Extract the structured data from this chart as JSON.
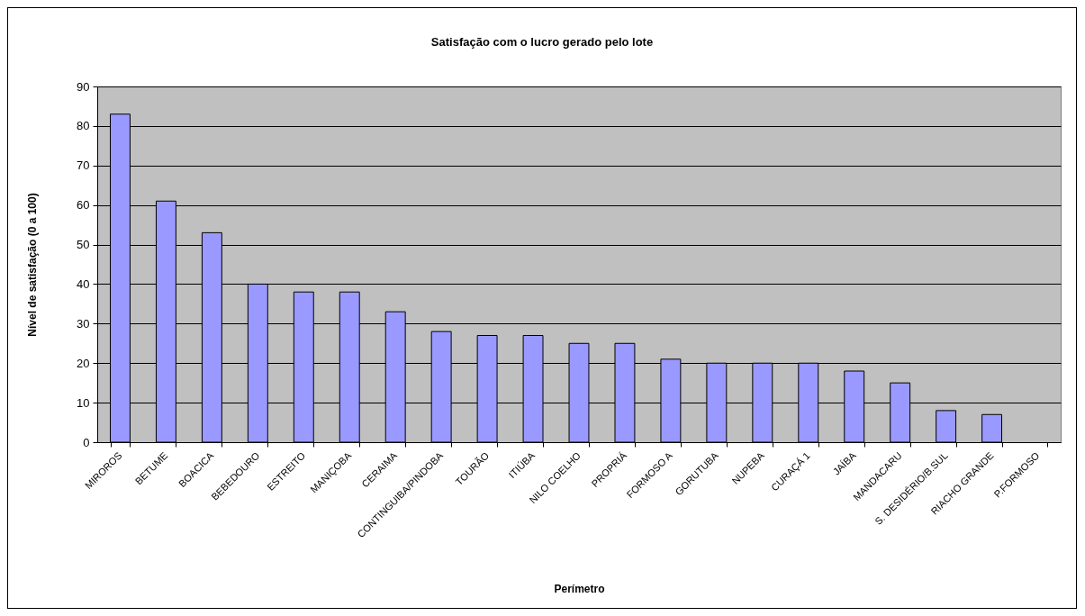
{
  "chart_data": {
    "type": "bar",
    "title": "Satisfação com o lucro gerado pelo lote",
    "xlabel": "Perímetro",
    "ylabel": "Nível de satisfação (0 a 100)",
    "categories": [
      "MIROROS",
      "BETUME",
      "BOACICA",
      "BEBEDOURO",
      "ESTREITO",
      "MANIÇOBA",
      "CERAIMA",
      "CONTINGUIBA/PINDOBA",
      "TOURÃO",
      "ITIÚBA",
      "NILO COELHO",
      "PROPRIÁ",
      "FORMOSO A",
      "GORUTUBA",
      "NUPEBA",
      "CURAÇÁ 1",
      "JAÍBA",
      "MANDACARU",
      "S. DESIDÉRIO/B.SUL",
      "RIACHO GRANDE",
      "P.FORMOSO"
    ],
    "values": [
      83,
      61,
      53,
      40,
      38,
      38,
      33,
      28,
      27,
      27,
      25,
      25,
      21,
      20,
      20,
      20,
      18,
      15,
      8,
      7,
      null
    ],
    "color": "#9999ff",
    "ylim": [
      0,
      90
    ],
    "yticks": [
      0,
      10,
      20,
      30,
      40,
      50,
      60,
      70,
      80,
      90
    ],
    "grid": true
  }
}
